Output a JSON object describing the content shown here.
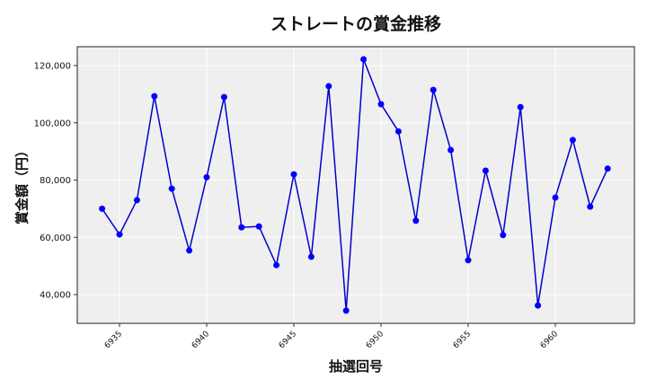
{
  "chart_data": {
    "type": "line",
    "title": "ストレートの賞金推移",
    "xlabel": "抽選回号",
    "ylabel": "賞金額（円）",
    "x": [
      6934,
      6935,
      6936,
      6937,
      6938,
      6939,
      6940,
      6941,
      6942,
      6943,
      6944,
      6945,
      6946,
      6947,
      6948,
      6949,
      6950,
      6951,
      6952,
      6953,
      6954,
      6955,
      6956,
      6957,
      6958,
      6959,
      6960,
      6961,
      6962,
      6963
    ],
    "series": [
      {
        "name": "賞金額",
        "color": "#0000cc",
        "marker_color": "#0000ff",
        "values": [
          70000,
          61000,
          73000,
          109300,
          77000,
          55400,
          81000,
          109000,
          63500,
          63800,
          50300,
          82000,
          53200,
          112800,
          34400,
          122200,
          106500,
          97000,
          65800,
          111500,
          90500,
          52000,
          83300,
          60800,
          105500,
          36200,
          73900,
          94000,
          70700,
          84000
        ]
      }
    ],
    "xticks": [
      6935,
      6940,
      6945,
      6950,
      6955,
      6960
    ],
    "yticks": [
      40000,
      60000,
      80000,
      100000,
      120000
    ],
    "ytick_labels": [
      "40,000",
      "60,000",
      "80,000",
      "100,000",
      "120,000"
    ],
    "xlim": [
      6932.5,
      6965
    ],
    "ylim": [
      30000,
      126500
    ],
    "grid": true,
    "legend": "none",
    "background": "#efefef"
  }
}
